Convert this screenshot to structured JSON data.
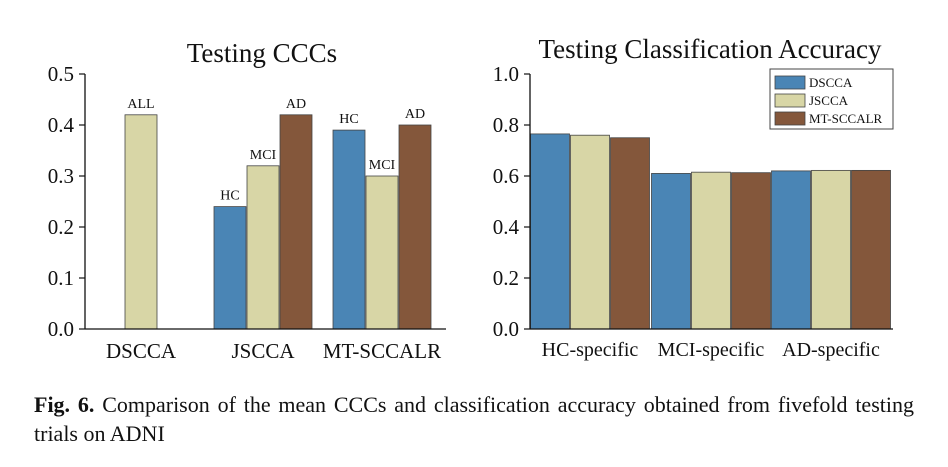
{
  "colors": {
    "DSCCA": "#4a85b5",
    "JSCCA": "#d8d6a6",
    "MT-SCCALR": "#84573b"
  },
  "chart_data": [
    {
      "type": "bar",
      "title": "Testing CCCs",
      "categories": [
        "DSCCA",
        "JSCCA",
        "MT-SCCALR"
      ],
      "ylim": [
        0.0,
        0.5
      ],
      "yticks": [
        "0.0",
        "0.1",
        "0.2",
        "0.3",
        "0.4",
        "0.5"
      ],
      "bars": [
        {
          "category": "DSCCA",
          "label": "ALL",
          "value": 0.42,
          "color_key": "JSCCA"
        },
        {
          "category": "JSCCA",
          "label": "HC",
          "value": 0.24,
          "color_key": "DSCCA"
        },
        {
          "category": "JSCCA",
          "label": "MCI",
          "value": 0.32,
          "color_key": "JSCCA"
        },
        {
          "category": "JSCCA",
          "label": "AD",
          "value": 0.42,
          "color_key": "MT-SCCALR"
        },
        {
          "category": "MT-SCCALR",
          "label": "HC",
          "value": 0.39,
          "color_key": "DSCCA"
        },
        {
          "category": "MT-SCCALR",
          "label": "MCI",
          "value": 0.3,
          "color_key": "JSCCA"
        },
        {
          "category": "MT-SCCALR",
          "label": "AD",
          "value": 0.4,
          "color_key": "MT-SCCALR"
        }
      ],
      "grid": false
    },
    {
      "type": "bar",
      "title": "Testing Classification Accuracy",
      "categories": [
        "HC-specific",
        "MCI-specific",
        "AD-specific"
      ],
      "ylim": [
        0.0,
        1.0
      ],
      "yticks": [
        "0.0",
        "0.2",
        "0.4",
        "0.6",
        "0.8",
        "1.0"
      ],
      "series": [
        {
          "name": "DSCCA",
          "values": [
            0.765,
            0.61,
            0.62
          ]
        },
        {
          "name": "JSCCA",
          "values": [
            0.76,
            0.615,
            0.622
          ]
        },
        {
          "name": "MT-SCCALR",
          "values": [
            0.75,
            0.613,
            0.622
          ]
        }
      ],
      "legend": "top-right",
      "grid": false
    }
  ],
  "caption": {
    "label": "Fig. 6.",
    "text": " Comparison of the mean CCCs and classification accuracy obtained from fivefold testing trials on ADNI"
  }
}
